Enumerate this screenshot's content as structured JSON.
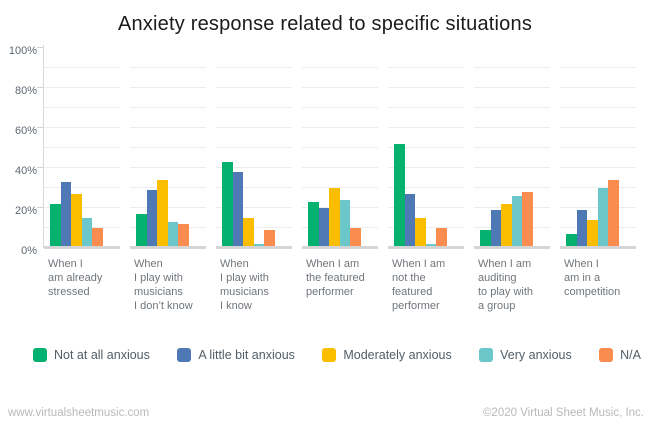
{
  "title": "Anxiety response related to specific situations",
  "chart_data": {
    "type": "bar",
    "title": "Anxiety response related to specific situations",
    "xlabel": "",
    "ylabel": "",
    "ylim": [
      0,
      100
    ],
    "yticks": [
      0,
      20,
      40,
      60,
      80,
      100
    ],
    "ytick_labels": [
      "0%",
      "20%",
      "40%",
      "60%",
      "80%",
      "100%"
    ],
    "grid": "light horizontal gridlines every 10%, drawn per category group with gaps between groups",
    "legend_position": "bottom",
    "categories": [
      "When I am already stressed",
      "When I play with musicians I don’t know",
      "When I play with musicians I know",
      "When I am the featured performer",
      "When I am not the featured performer",
      "When I am auditing to play with a group",
      "When I am in a competition"
    ],
    "category_label_lines": [
      [
        "When I",
        "am already",
        "stressed"
      ],
      [
        "When",
        "I play with",
        "musicians",
        "I don’t know"
      ],
      [
        "When",
        "I play with",
        "musicians",
        "I know"
      ],
      [
        "When I am",
        "the featured",
        "performer"
      ],
      [
        "When I am",
        "not the",
        "featured",
        "performer"
      ],
      [
        "When I am",
        "auditing",
        "to play with",
        "a group"
      ],
      [
        "When I",
        "am in a",
        "competition"
      ]
    ],
    "series": [
      {
        "name": "Not at all anxious",
        "color": "#04b16e",
        "values": [
          21,
          16,
          42,
          22,
          51,
          8,
          6
        ]
      },
      {
        "name": "A little bit anxious",
        "color": "#4e79b5",
        "values": [
          32,
          28,
          37,
          19,
          26,
          18,
          18
        ]
      },
      {
        "name": "Moderately anxious",
        "color": "#fabd00",
        "values": [
          26,
          33,
          14,
          29,
          14,
          21,
          13
        ]
      },
      {
        "name": "Very anxious",
        "color": "#6cc7cb",
        "values": [
          14,
          12,
          1,
          23,
          1,
          25,
          29
        ]
      },
      {
        "name": "N/A",
        "color": "#fb8c50",
        "values": [
          9,
          11,
          8,
          9,
          9,
          27,
          33
        ]
      }
    ]
  },
  "footer": {
    "left": "www.virtualsheetmusic.com",
    "right": "©2020 Virtual Sheet Music, Inc."
  },
  "colors": {
    "background": "#ffffff",
    "grid_line": "#ececec",
    "axis_line": "#d8d8d8",
    "baseline": "#d5d5d5",
    "title_text": "#1b1b1b",
    "axis_label_text": "#5d6772",
    "category_label_text": "#70767c",
    "legend_text": "#515e68",
    "footer_text": "#b9b9b9"
  }
}
